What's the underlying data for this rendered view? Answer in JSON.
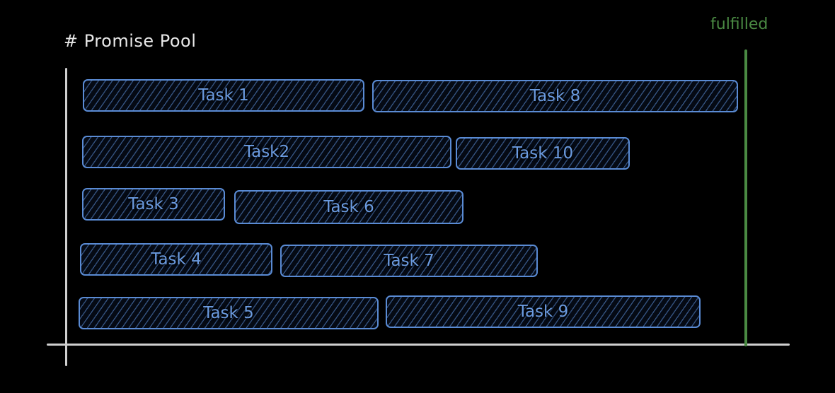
{
  "title": "# Promise Pool",
  "fulfilled_label": "fulfilled",
  "colors": {
    "task_stroke": "#5a8bd4",
    "fulfilled": "#4a8a43",
    "axis": "#cfcfcf",
    "background": "#000000"
  },
  "tasks": {
    "t1": "Task 1",
    "t8": "Task 8",
    "t2": "Task2",
    "t10": "Task 10",
    "t3": "Task 3",
    "t6": "Task 6",
    "t4": "Task 4",
    "t7": "Task 7",
    "t5": "Task 5",
    "t9": "Task 9"
  }
}
